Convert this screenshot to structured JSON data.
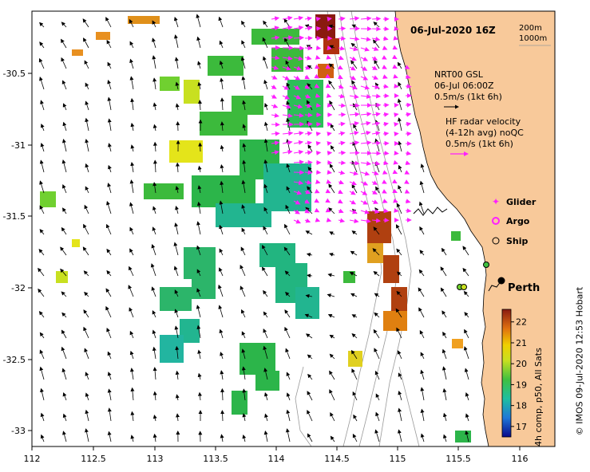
{
  "title": "06-Jul-2020 16Z",
  "depth_legend": [
    "200m",
    "1000m"
  ],
  "gsl_label": [
    "NRT00 GSL",
    "06-Jul 06:00Z",
    "0.5m/s (1kt 6h)"
  ],
  "hf_label": [
    "HF radar velocity",
    "(4-12h avg) noQC",
    "0.5m/s (1kt 6h)"
  ],
  "legend": {
    "glider": "Glider",
    "argo": "Argo",
    "ship": "Ship"
  },
  "city": "Perth",
  "colorbar": {
    "label": "4h comp, p50, All Sats",
    "ticks": [
      "17",
      "18",
      "19",
      "20",
      "21",
      "22"
    ],
    "min": 16.5,
    "max": 22.6
  },
  "axes": {
    "lon_ticks": [
      "112",
      "112.5",
      "113",
      "113.5",
      "114",
      "114.5",
      "115",
      "115.5",
      "116"
    ],
    "lat_ticks": [
      "-30.5",
      "-31",
      "-31.5",
      "-32",
      "-32.5",
      "-33"
    ]
  },
  "credit": "© IMOS 09-Jul-2020 12:53 Hobart",
  "colors": {
    "land": "#f8c99a",
    "hf_arrow": "#ff1fff"
  }
}
